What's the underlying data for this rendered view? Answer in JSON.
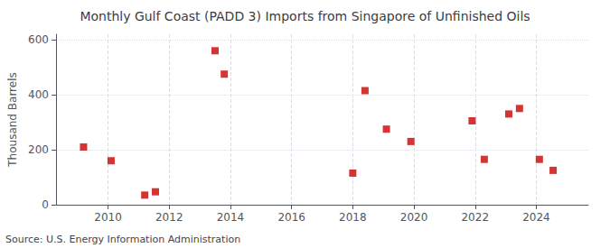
{
  "chart_data": {
    "type": "scatter",
    "title": "Monthly Gulf Coast (PADD 3) Imports from Singapore of Unfinished Oils",
    "ylabel": "Thousand Barrels",
    "source": "Source: U.S. Energy Information Administration",
    "x": [
      2009.2,
      2010.1,
      2011.2,
      2011.55,
      2013.5,
      2013.8,
      2018.0,
      2018.4,
      2019.1,
      2019.9,
      2021.9,
      2022.3,
      2023.1,
      2023.45,
      2024.1,
      2024.55
    ],
    "values": [
      210,
      160,
      35,
      47,
      560,
      475,
      115,
      415,
      275,
      230,
      305,
      165,
      330,
      350,
      165,
      125
    ],
    "color": "#cc0000",
    "marker": "square",
    "xlim": [
      2008.3,
      2025.7
    ],
    "ylim": [
      0,
      620
    ],
    "xticks": [
      2010,
      2012,
      2014,
      2016,
      2018,
      2020,
      2022,
      2024
    ],
    "yticks": [
      0,
      200,
      400,
      600
    ],
    "grid": true
  }
}
